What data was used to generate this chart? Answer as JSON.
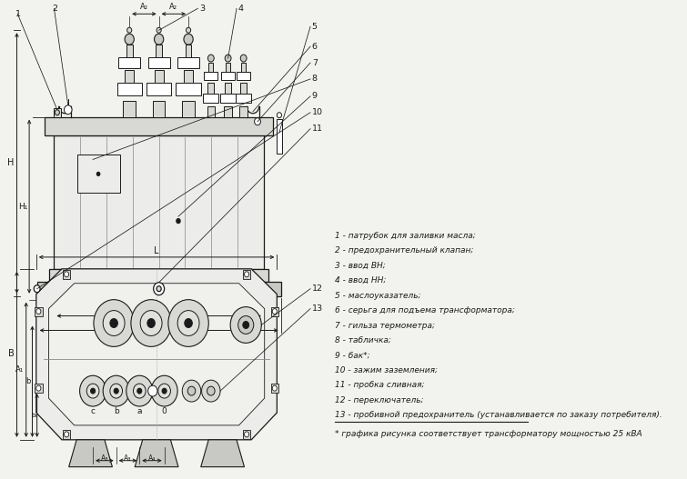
{
  "bg_color": "#f2f2ee",
  "draw_color": "#1a1a1a",
  "legend_lines": [
    "1 - патрубок для заливки масла;",
    "2 - предохранительный клапан;",
    "3 - ввод ВН;",
    "4 - ввод НН;",
    "5 - маслоуказатель;",
    "6 - серьга для подъема трансформатора;",
    "7 - гильза термометра;",
    "8 - табличка;",
    "9 - бак*;",
    "10 - зажим заземления;",
    "11 - пробка сливная;",
    "12 - переключатель;",
    "13 - пробивной предохранитель (устанавливается по заказу потребителя)."
  ],
  "footnote": "* графика рисунка соответствует трансформатору мощностью 25 кВА"
}
